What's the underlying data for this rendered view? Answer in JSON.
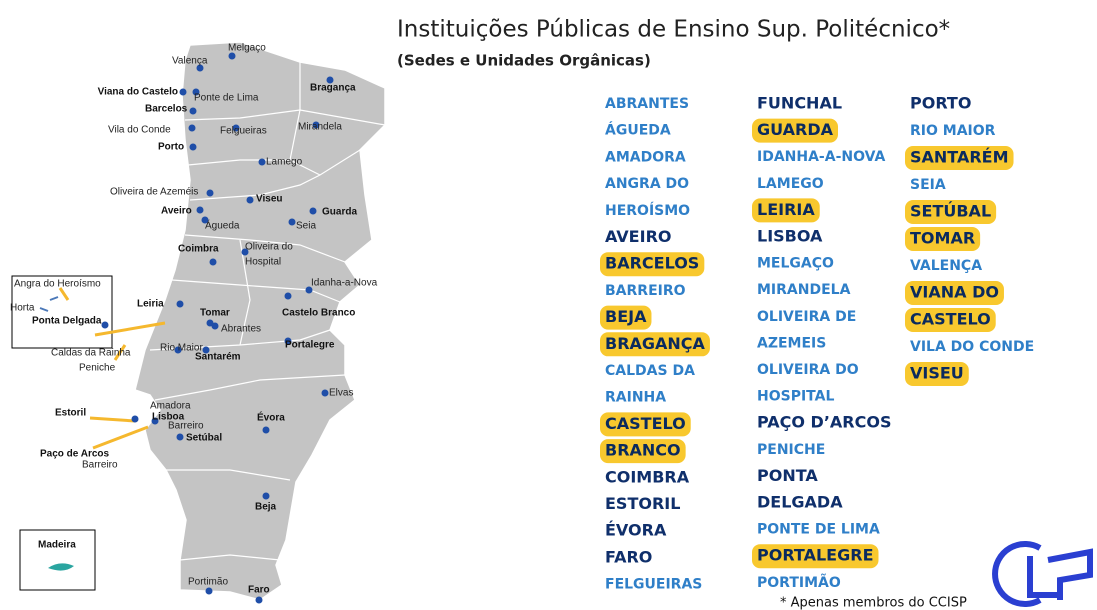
{
  "header": {
    "title": "Instituições Públicas de Ensino Sup. Politécnico*",
    "subtitle": "(Sedes e Unidades Orgânicas)"
  },
  "map": {
    "places": [
      "Valença",
      "Melgaço",
      "Viana do Castelo",
      "Ponte de Lima",
      "Bragança",
      "Barcelos",
      "Vila do Conde",
      "Felgueiras",
      "Mirandela",
      "Porto",
      "Lamego",
      "Oliveira de Azeméis",
      "Viseu",
      "Aveiro",
      "Guarda",
      "Águeda",
      "Seia",
      "Coimbra",
      "Oliveira do",
      "Hospital",
      "Angra do Heroísmo",
      "Idanha-a-Nova",
      "Horta",
      "Ponta Delgada",
      "Leiria",
      "Tomar",
      "Castelo Branco",
      "Abrantes",
      "Caldas da Rainha",
      "Rio Maior",
      "Santarém",
      "Portalegre",
      "Peniche",
      "Elvas",
      "Amadora",
      "Estoril",
      "Lisboa",
      "Barreiro",
      "Setúbal",
      "Évora",
      "Paço de Arcos",
      "Barreiro",
      "Beja",
      "Madeira",
      "Portimão",
      "Faro"
    ]
  },
  "list": {
    "columns": [
      [
        {
          "text": "ABRANTES"
        },
        {
          "text": "ÁGUEDA"
        },
        {
          "text": "AMADORA"
        },
        {
          "text": "ANGRA DO"
        },
        {
          "text": "HEROÍSMO"
        },
        {
          "text": "AVEIRO",
          "seat": true
        },
        {
          "text": "BARCELOS",
          "seat": true,
          "highlight": true
        },
        {
          "text": "BARREIRO"
        },
        {
          "text": "BEJA",
          "seat": true,
          "highlight": true
        },
        {
          "text": "BRAGANÇA",
          "seat": true,
          "highlight": true
        },
        {
          "text": "CALDAS DA"
        },
        {
          "text": "RAINHA"
        },
        {
          "text": "CASTELO",
          "seat": true,
          "highlight": true
        },
        {
          "text": "BRANCO",
          "seat": true,
          "highlight": true
        },
        {
          "text": "COIMBRA",
          "seat": true
        },
        {
          "text": "ESTORIL",
          "seat": true
        },
        {
          "text": "ÉVORA",
          "seat": true
        },
        {
          "text": "FARO",
          "seat": true
        },
        {
          "text": "FELGUEIRAS"
        }
      ],
      [
        {
          "text": "FUNCHAL",
          "seat": true
        },
        {
          "text": "GUARDA",
          "seat": true,
          "highlight": true
        },
        {
          "text": "IDANHA-A-NOVA"
        },
        {
          "text": "LAMEGO"
        },
        {
          "text": "LEIRIA",
          "seat": true,
          "highlight": true
        },
        {
          "text": "LISBOA",
          "seat": true
        },
        {
          "text": "MELGAÇO"
        },
        {
          "text": "MIRANDELA"
        },
        {
          "text": "OLIVEIRA DE"
        },
        {
          "text": "AZEMEIS"
        },
        {
          "text": "OLIVEIRA DO"
        },
        {
          "text": "HOSPITAL"
        },
        {
          "text": "PAÇO D’ARCOS",
          "seat": true
        },
        {
          "text": "PENICHE"
        },
        {
          "text": "PONTA",
          "seat": true
        },
        {
          "text": "DELGADA",
          "seat": true
        },
        {
          "text": "PONTE DE LIMA"
        },
        {
          "text": "PORTALEGRE",
          "seat": true,
          "highlight": true
        },
        {
          "text": "PORTIMÃO"
        }
      ],
      [
        {
          "text": "PORTO",
          "seat": true
        },
        {
          "text": "RIO MAIOR"
        },
        {
          "text": "SANTARÉM",
          "seat": true,
          "highlight": true
        },
        {
          "text": "SEIA"
        },
        {
          "text": "SETÚBAL",
          "seat": true,
          "highlight": true
        },
        {
          "text": "TOMAR",
          "seat": true,
          "highlight": true
        },
        {
          "text": "VALENÇA"
        },
        {
          "text": "VIANA DO",
          "seat": true,
          "highlight": true
        },
        {
          "text": "CASTELO",
          "seat": true,
          "highlight": true
        },
        {
          "text": "VILA DO CONDE"
        },
        {
          "text": "VISEU",
          "seat": true,
          "highlight": true
        }
      ]
    ]
  },
  "footnote": "* Apenas membros  do CCISP"
}
